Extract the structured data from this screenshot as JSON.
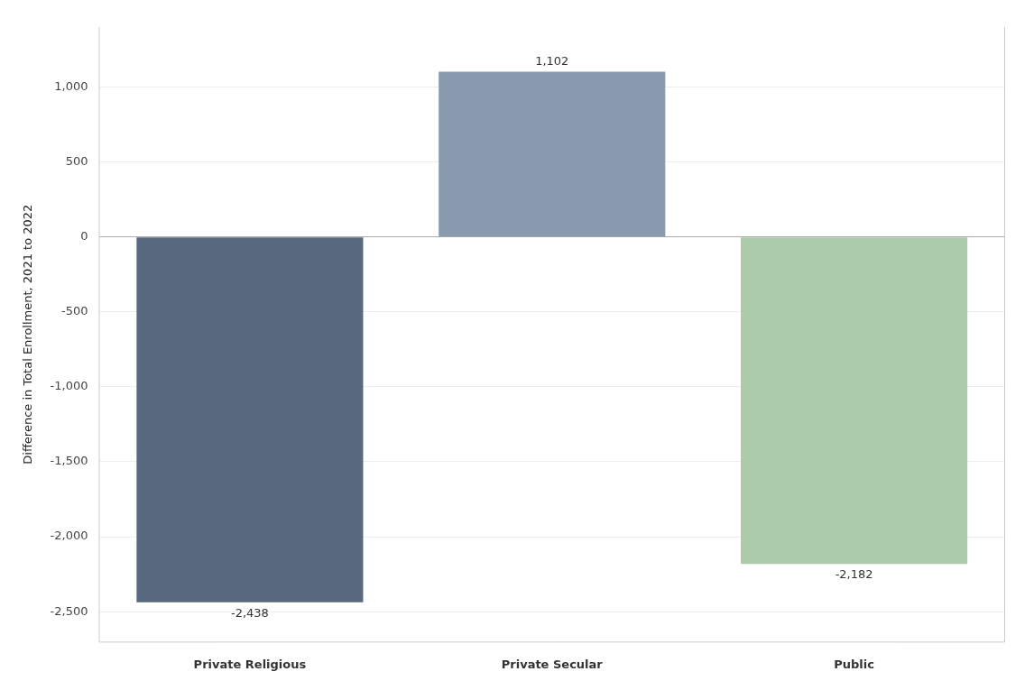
{
  "chart_data": {
    "type": "bar",
    "y_label": "Difference in Total Enrollment, 2021 to 2022",
    "categories": [
      "Private Religious",
      "Private Secular",
      "Public"
    ],
    "values": [
      -2438,
      1102,
      -2182
    ],
    "value_labels": [
      "-2,438",
      "1,102",
      "-2,182"
    ],
    "colors": [
      "#56697e",
      "#8a9bb0",
      "#accbab"
    ],
    "ylim": [
      -2700,
      1400
    ],
    "yticks": [
      {
        "value": -2500,
        "label": "-2,500"
      },
      {
        "value": -2000,
        "label": "-2,000"
      },
      {
        "value": -1500,
        "label": "-1,500"
      },
      {
        "value": -1000,
        "label": "-1,000"
      },
      -500,
      0,
      500,
      {
        "value": 1000,
        "label": "1,000"
      }
    ],
    "grid": true,
    "data_labels": true
  }
}
